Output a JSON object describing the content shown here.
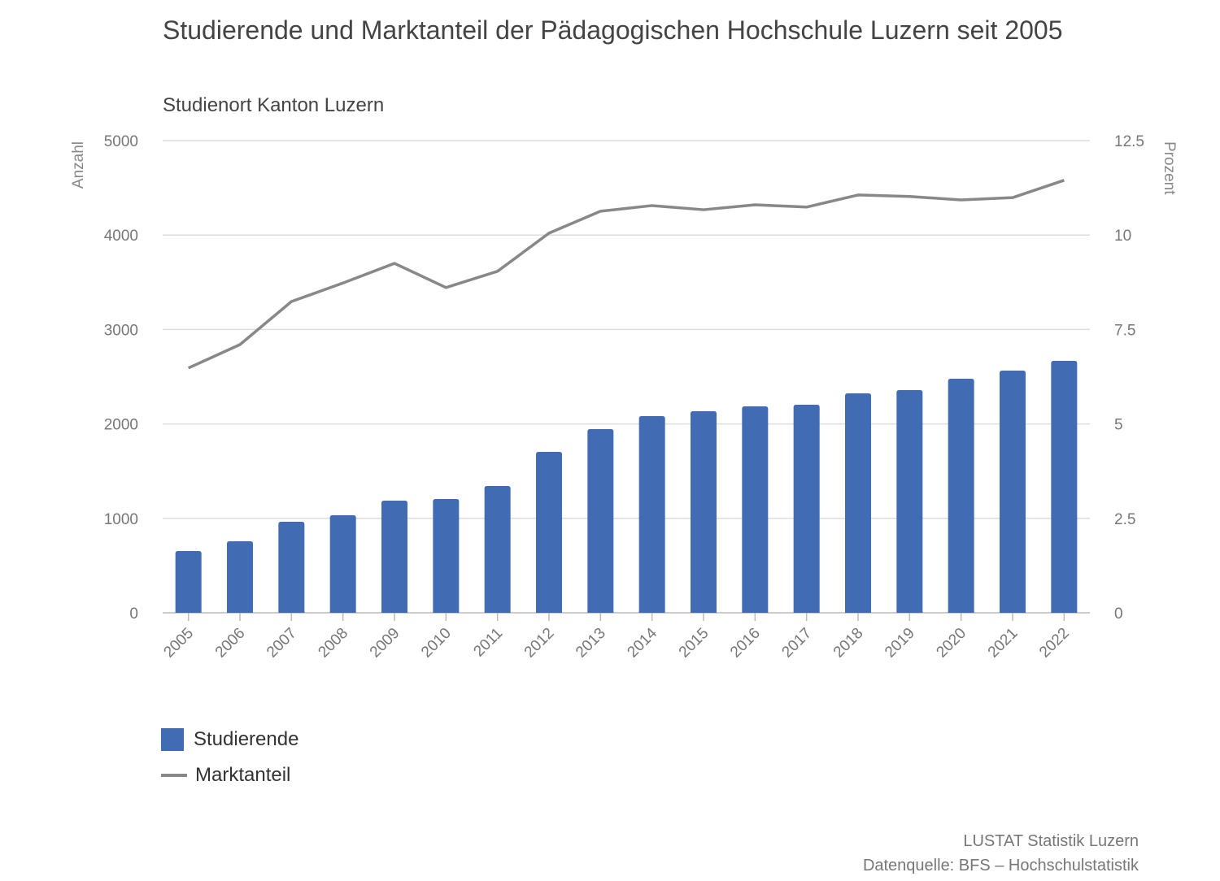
{
  "chart_data": {
    "type": "bar+line",
    "title": "Studierende und Marktanteil der Pädagogischen Hochschule Luzern seit 2005",
    "subtitle": "Studienort Kanton Luzern",
    "ylabel_left": "Anzahl",
    "ylabel_right": "Prozent",
    "ylim_left": [
      0,
      5000
    ],
    "ylim_right": [
      0,
      12.5
    ],
    "yticks_left": [
      "0",
      "1000",
      "2000",
      "3000",
      "4000",
      "5000"
    ],
    "yticks_right": [
      "0",
      "2.5",
      "5",
      "7.5",
      "10",
      "12.5"
    ],
    "grid": true,
    "legend_position": "bottom-left",
    "categories": [
      "2005",
      "2006",
      "2007",
      "2008",
      "2009",
      "2010",
      "2011",
      "2012",
      "2013",
      "2014",
      "2015",
      "2016",
      "2017",
      "2018",
      "2019",
      "2020",
      "2021",
      "2022"
    ],
    "series": [
      {
        "name": "Studierende",
        "type": "bar",
        "axis": "left",
        "color": "#416bb2",
        "values": [
          654,
          757,
          964,
          1033,
          1188,
          1205,
          1343,
          1704,
          1945,
          2083,
          2134,
          2186,
          2203,
          2324,
          2358,
          2478,
          2565,
          2668
        ]
      },
      {
        "name": "Marktanteil",
        "type": "line",
        "axis": "right",
        "color": "#888888",
        "values": [
          6.48,
          7.1,
          8.24,
          8.73,
          9.25,
          8.61,
          9.04,
          10.05,
          10.63,
          10.78,
          10.67,
          10.8,
          10.74,
          11.06,
          11.02,
          10.93,
          10.99,
          11.45
        ]
      }
    ]
  },
  "credits": {
    "line1": "LUSTAT Statistik Luzern",
    "line2": "Datenquelle: BFS – Hochschulstatistik"
  }
}
